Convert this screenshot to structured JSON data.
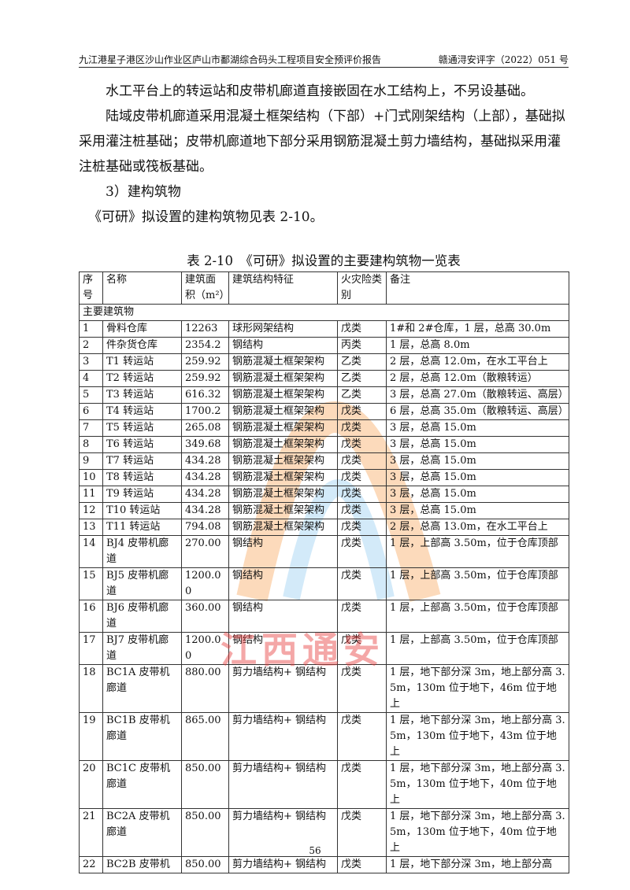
{
  "header": {
    "left": "九江港星子港区沙山作业区庐山市鄱湖综合码头工程项目安全预评价报告",
    "right": "赣通浔安评字（2022）051 号"
  },
  "paragraphs": [
    "水工平台上的转运站和皮带机廊道直接嵌固在水工结构上，不另设基础。",
    "陆域皮带机廊道采用混凝土框架结构（下部）+门式刚架结构（上部），基础拟采用灌注桩基础；皮带机廊道地下部分采用钢筋混凝土剪力墙结构，基础拟采用灌注桩基础或筏板基础。",
    "3）建构筑物",
    "《可研》拟设置的建构筑物见表 2-10。"
  ],
  "table": {
    "caption": "表 2-10　《可研》拟设置的主要建构筑物一览表",
    "headers": [
      "序号",
      "名称",
      "建筑面积（m²）",
      "建筑结构特征",
      "火灾险类别",
      "备注"
    ],
    "section": "主要建筑物",
    "rows": [
      [
        "1",
        "骨料仓库",
        "12263",
        "球形网架结构",
        "戊类",
        "1#和 2#仓库，1 层，总高 30.0m"
      ],
      [
        "2",
        "件杂货仓库",
        "2354.2",
        "钢结构",
        "丙类",
        "1 层，总高 8.0m"
      ],
      [
        "3",
        "T1 转运站",
        "259.92",
        "钢筋混凝土框架架构",
        "乙类",
        "2 层，总高 12.0m，在水工平台上"
      ],
      [
        "4",
        "T2 转运站",
        "259.92",
        "钢筋混凝土框架架构",
        "乙类",
        "2 层，总高 12.0m（散粮转运）"
      ],
      [
        "5",
        "T3 转运站",
        "616.32",
        "钢筋混凝土框架架构",
        "乙类",
        "3 层，总高 27.0m（散粮转运、高层）"
      ],
      [
        "6",
        "T4 转运站",
        "1700.2",
        "钢筋混凝土框架架构",
        "戊类",
        "6 层，总高 35.0m（散粮转运、高层）"
      ],
      [
        "7",
        "T5 转运站",
        "265.08",
        "钢筋混凝土框架架构",
        "戊类",
        "3 层，总高 15.0m"
      ],
      [
        "8",
        "T6 转运站",
        "349.68",
        "钢筋混凝土框架架构",
        "戊类",
        "3 层，总高 15.0m"
      ],
      [
        "9",
        "T7 转运站",
        "434.28",
        "钢筋混凝土框架架构",
        "戊类",
        "3 层，总高 15.0m"
      ],
      [
        "10",
        "T8 转运站",
        "434.28",
        "钢筋混凝土框架架构",
        "戊类",
        "3 层，总高 15.0m"
      ],
      [
        "11",
        "T9 转运站",
        "434.28",
        "钢筋混凝土框架架构",
        "戊类",
        "3 层，总高 15.0m"
      ],
      [
        "12",
        "T10 转运站",
        "434.28",
        "钢筋混凝土框架架构",
        "戊类",
        "3 层，总高 15.0m"
      ],
      [
        "13",
        "T11 转运站",
        "794.08",
        "钢筋混凝土框架架构",
        "戊类",
        "2 层，总高 13.0m，在水工平台上"
      ],
      [
        "14",
        "BJ4 皮带机廊道",
        "270.00",
        "钢结构",
        "戊类",
        "1 层，上部高 3.50m，位于仓库顶部"
      ],
      [
        "15",
        "BJ5 皮带机廊道",
        "1200.00",
        "钢结构",
        "戊类",
        "1 层，上部高 3.50m，位于仓库顶部"
      ],
      [
        "16",
        "BJ6 皮带机廊道",
        "360.00",
        "钢结构",
        "戊类",
        "1 层，上部高 3.50m，位于仓库顶部"
      ],
      [
        "17",
        "BJ7 皮带机廊道",
        "1200.00",
        "钢结构",
        "戊类",
        "1 层，上部高 3.50m，位于仓库顶部"
      ],
      [
        "18",
        "BC1A 皮带机廊道",
        "880.00",
        "剪力墙结构+ 钢结构",
        "戊类",
        "1 层，地下部分深 3m，地上部分高 3.5m，130m 位于地下，46m 位于地上"
      ],
      [
        "19",
        "BC1B 皮带机廊道",
        "865.00",
        "剪力墙结构+ 钢结构",
        "戊类",
        "1 层，地下部分深 3m，地上部分高 3.5m，130m 位于地下，43m 位于地上"
      ],
      [
        "20",
        "BC1C 皮带机廊道",
        "850.00",
        "剪力墙结构+ 钢结构",
        "戊类",
        "1 层，地下部分深 3m，地上部分高 3.5m，130m 位于地下，40m 位于地上"
      ],
      [
        "21",
        "BC2A 皮带机廊道",
        "850.00",
        "剪力墙结构+ 钢结构",
        "戊类",
        "1 层，地下部分深 3m，地上部分高 3.5m，130m 位于地下，40m 位于地上"
      ],
      [
        "22",
        "BC2B 皮带机",
        "850.00",
        "剪力墙结构+ 钢结构",
        "戊类",
        "1 层，地下部分深 3m，地上部分高"
      ]
    ]
  },
  "watermark": "江西通安",
  "page_number": "56"
}
